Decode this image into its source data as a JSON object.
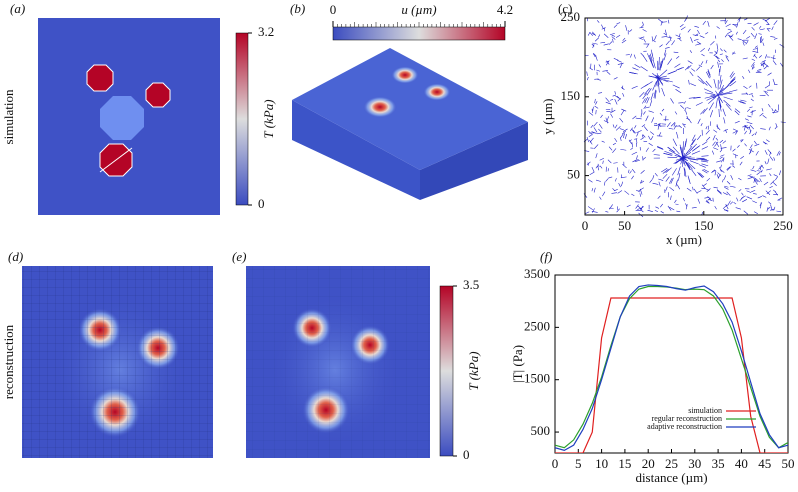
{
  "chart_data": [
    {
      "type": "heatmap",
      "panel": "(a)",
      "row_label": "simulation",
      "colorbar": {
        "label": "T (kPa)",
        "lim": [
          0,
          3.2
        ],
        "ticks": [
          0,
          3.2
        ],
        "orientation": "vertical"
      }
    },
    {
      "type": "surface",
      "panel": "(b)",
      "colorbar": {
        "label": "u (µm)",
        "lim": [
          0,
          4.2
        ],
        "ticks": [
          0,
          4.2
        ],
        "orientation": "horizontal"
      }
    },
    {
      "type": "quiver",
      "panel": "(c)",
      "xlabel": "x (µm)",
      "ylabel": "y (µm)",
      "color": "#2020c8",
      "xlim": [
        0,
        250
      ],
      "xticks": [
        0,
        50,
        150,
        250
      ],
      "ylim": [
        0,
        250
      ],
      "yticks": [
        50,
        150,
        250
      ]
    },
    {
      "type": "heatmap",
      "panel": "(d)",
      "row_label": "reconstruction"
    },
    {
      "type": "heatmap",
      "panel": "(e)",
      "colorbar": {
        "label": "T (kPa)",
        "lim": [
          0,
          3.5
        ],
        "ticks": [
          0,
          3.5
        ],
        "orientation": "vertical"
      }
    },
    {
      "type": "line",
      "panel": "(f)",
      "xlabel": "distance (µm)",
      "ylabel": "|T| (Pa)",
      "xlim": [
        0,
        50
      ],
      "xticks": [
        0,
        5,
        10,
        15,
        20,
        25,
        30,
        35,
        40,
        45,
        50
      ],
      "ylim": [
        100,
        3500
      ],
      "yticks": [
        500,
        1500,
        2500,
        3500
      ],
      "legend": "lower center",
      "x": [
        0,
        2,
        4,
        6,
        8,
        10,
        12,
        14,
        16,
        18,
        20,
        22,
        24,
        26,
        28,
        30,
        32,
        34,
        36,
        38,
        40,
        42,
        44,
        46,
        48,
        50
      ],
      "series": [
        {
          "name": "simulation",
          "color": "#e02020",
          "values": [
            100,
            100,
            100,
            100,
            500,
            2300,
            3060,
            3060,
            3060,
            3060,
            3060,
            3060,
            3060,
            3060,
            3060,
            3060,
            3060,
            3060,
            3060,
            3060,
            2300,
            800,
            100,
            100,
            100,
            100
          ]
        },
        {
          "name": "regular reconstruction",
          "color": "#2ca02c",
          "values": [
            250,
            200,
            350,
            650,
            1050,
            1550,
            2150,
            2700,
            3050,
            3230,
            3280,
            3280,
            3270,
            3250,
            3220,
            3230,
            3220,
            3100,
            2850,
            2450,
            1900,
            1350,
            800,
            400,
            200,
            300
          ]
        },
        {
          "name": "adaptive reconstruction",
          "color": "#1f3fbf",
          "values": [
            200,
            150,
            250,
            550,
            950,
            1500,
            2100,
            2700,
            3100,
            3280,
            3310,
            3300,
            3280,
            3240,
            3210,
            3260,
            3290,
            3180,
            2950,
            2600,
            2050,
            1450,
            850,
            450,
            200,
            250
          ]
        }
      ]
    }
  ]
}
